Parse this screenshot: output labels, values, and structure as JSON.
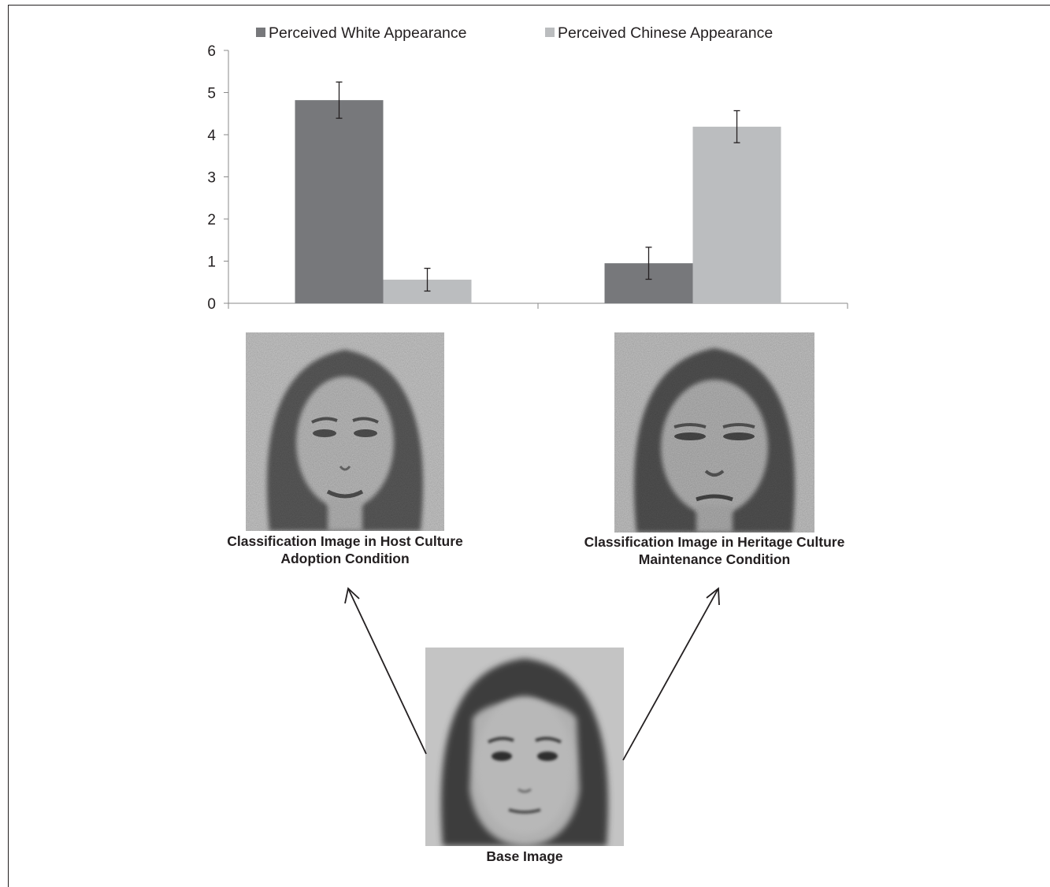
{
  "chart_data": {
    "type": "bar",
    "categories": [
      "",
      ""
    ],
    "series": [
      {
        "name": "Perceived White Appearance",
        "color": "#77787b",
        "values": [
          4.82,
          0.95
        ],
        "error": [
          0.43,
          0.38
        ]
      },
      {
        "name": "Perceived Chinese Appearance",
        "color": "#bbbdbf",
        "values": [
          0.56,
          4.19
        ],
        "error": [
          0.27,
          0.38
        ]
      }
    ],
    "ylim": [
      0,
      6
    ],
    "yticks": [
      "0",
      "1",
      "2",
      "3",
      "4",
      "5",
      "6"
    ],
    "grid": false,
    "legend": "top"
  },
  "images": {
    "host": {
      "caption_line1": "Classification Image in Host Culture",
      "caption_line2": "Adoption Condition"
    },
    "heritage": {
      "caption_line1": "Classification Image in Heritage Culture",
      "caption_line2": "Maintenance Condition"
    },
    "base": {
      "caption": "Base Image"
    }
  }
}
